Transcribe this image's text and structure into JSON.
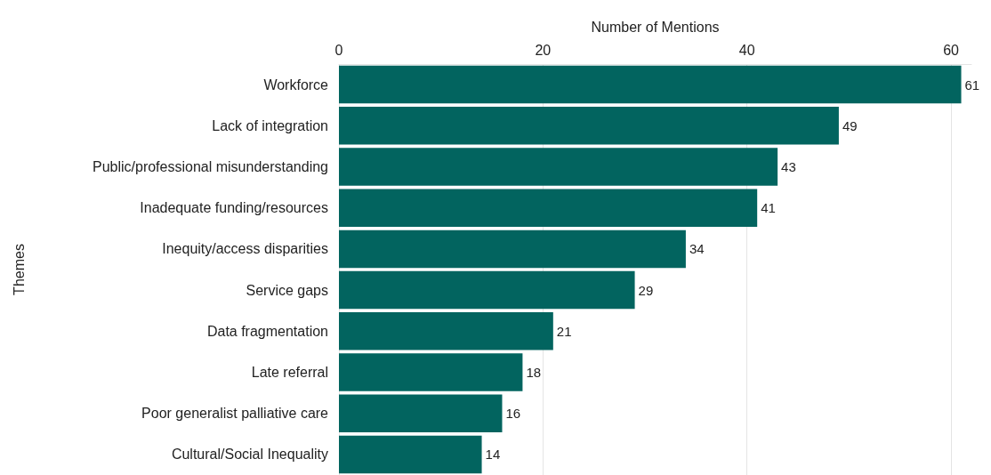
{
  "chart_data": {
    "type": "bar",
    "orientation": "horizontal",
    "xlabel": "Number of Mentions",
    "ylabel": "Themes",
    "categories": [
      "Workforce",
      "Lack of integration",
      "Public/professional misunderstanding",
      "Inadequate funding/resources",
      "Inequity/access disparities",
      "Service gaps",
      "Data fragmentation",
      "Late referral",
      "Poor generalist palliative care",
      "Cultural/Social Inequality"
    ],
    "values": [
      61,
      49,
      43,
      41,
      34,
      29,
      21,
      18,
      16,
      14
    ],
    "color": "#02645f",
    "xlim": [
      0,
      62
    ],
    "xticks": [
      0,
      20,
      40,
      60
    ],
    "grid": "x",
    "data_labels": true
  }
}
